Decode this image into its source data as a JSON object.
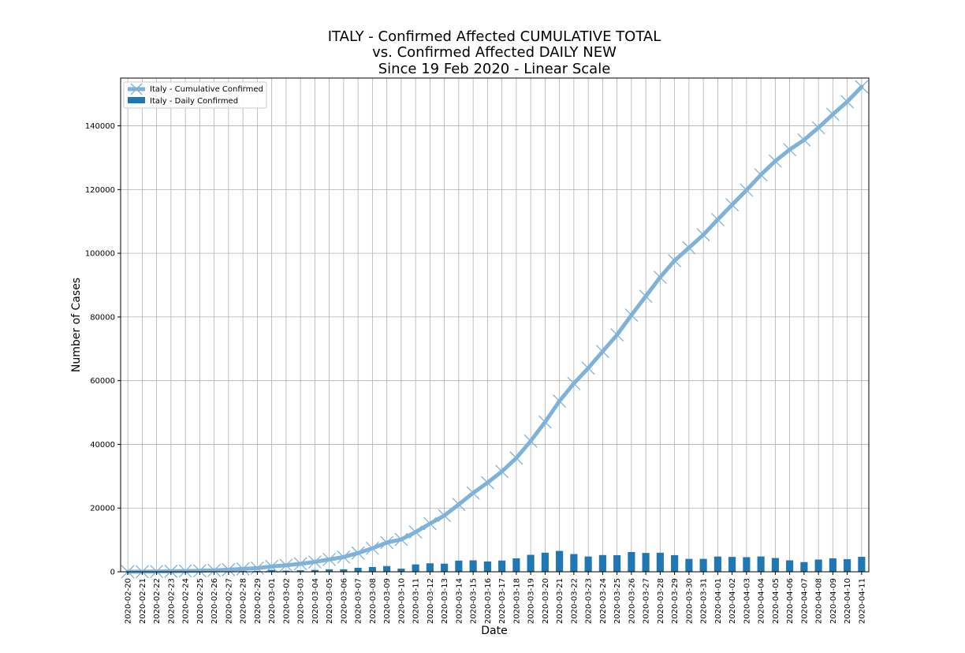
{
  "chart_data": {
    "type": "bar+line",
    "title_lines": [
      "ITALY - Confirmed Affected CUMULATIVE TOTAL",
      "vs. Confirmed Affected DAILY NEW",
      "Since 19 Feb 2020 - Linear Scale"
    ],
    "xlabel": "Date",
    "ylabel": "Number of Cases",
    "ylim": [
      0,
      155000
    ],
    "yticks": [
      0,
      20000,
      40000,
      60000,
      80000,
      100000,
      120000,
      140000
    ],
    "grid": true,
    "legend_position": "top-left",
    "categories": [
      "2020-02-20",
      "2020-02-21",
      "2020-02-22",
      "2020-02-23",
      "2020-02-24",
      "2020-02-25",
      "2020-02-26",
      "2020-02-27",
      "2020-02-28",
      "2020-02-29",
      "2020-03-01",
      "2020-03-02",
      "2020-03-03",
      "2020-03-04",
      "2020-03-05",
      "2020-03-06",
      "2020-03-07",
      "2020-03-08",
      "2020-03-09",
      "2020-03-10",
      "2020-03-11",
      "2020-03-12",
      "2020-03-13",
      "2020-03-14",
      "2020-03-15",
      "2020-03-16",
      "2020-03-17",
      "2020-03-18",
      "2020-03-19",
      "2020-03-20",
      "2020-03-21",
      "2020-03-22",
      "2020-03-23",
      "2020-03-24",
      "2020-03-25",
      "2020-03-26",
      "2020-03-27",
      "2020-03-28",
      "2020-03-29",
      "2020-03-30",
      "2020-03-31",
      "2020-04-01",
      "2020-04-02",
      "2020-04-03",
      "2020-04-04",
      "2020-04-05",
      "2020-04-06",
      "2020-04-07",
      "2020-04-08",
      "2020-04-09",
      "2020-04-10",
      "2020-04-11"
    ],
    "series": [
      {
        "name": "Italy - Cumulative Confirmed",
        "kind": "line",
        "color": "#7fb2d9",
        "marker": "x",
        "values": [
          3,
          20,
          79,
          150,
          227,
          320,
          445,
          650,
          888,
          1128,
          1694,
          2036,
          2502,
          3089,
          3858,
          4636,
          5883,
          7375,
          9172,
          10149,
          12462,
          15113,
          17660,
          21157,
          24747,
          27980,
          31506,
          35713,
          41035,
          47021,
          53578,
          59138,
          63927,
          69176,
          74386,
          80589,
          86498,
          92472,
          97689,
          101739,
          105792,
          110574,
          115242,
          119827,
          124632,
          128948,
          132547,
          135586,
          139422,
          143626,
          147577,
          152271
        ]
      },
      {
        "name": "Italy - Daily Confirmed",
        "kind": "bar",
        "color": "#1f77b4",
        "values": [
          0,
          17,
          59,
          71,
          77,
          93,
          125,
          205,
          238,
          240,
          566,
          342,
          466,
          587,
          769,
          778,
          1247,
          1492,
          1797,
          977,
          2313,
          2651,
          2547,
          3497,
          3590,
          3233,
          3526,
          4207,
          5322,
          5986,
          6557,
          5560,
          4789,
          5249,
          5210,
          6203,
          5909,
          5974,
          5217,
          4050,
          4053,
          4782,
          4668,
          4585,
          4805,
          4316,
          3599,
          3039,
          3836,
          4204,
          3951,
          4694
        ]
      }
    ]
  }
}
